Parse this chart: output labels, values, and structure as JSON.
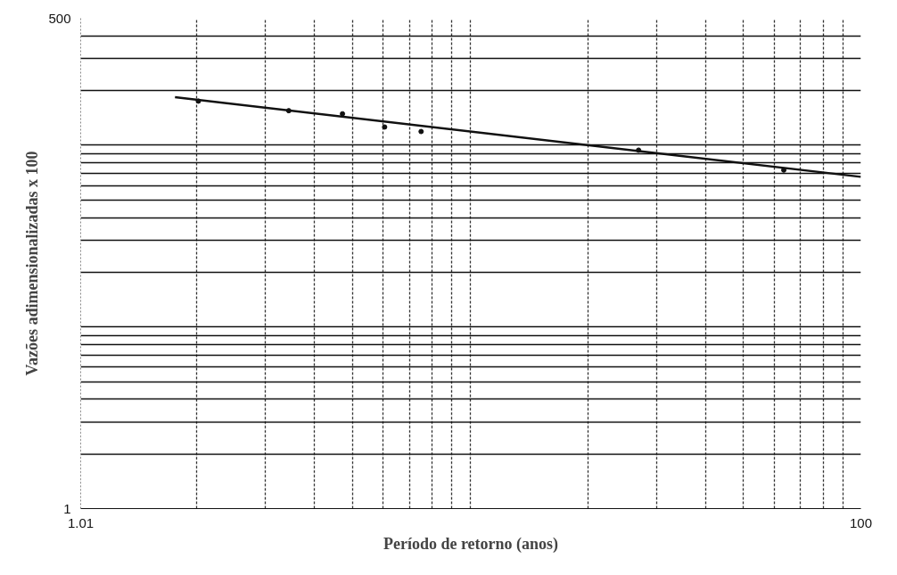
{
  "chart_data": {
    "type": "line",
    "xlabel": "Período de retorno (anos)",
    "ylabel": "Vazões adimensionalizadas x 100",
    "log": "xy",
    "grid": true,
    "xlim": [
      1.01,
      100
    ],
    "ylim": [
      1,
      500
    ],
    "xticks": [
      {
        "value": 1.01,
        "label": "1.01"
      },
      {
        "value": 2,
        "label": null
      },
      {
        "value": 3,
        "label": null
      },
      {
        "value": 4,
        "label": null
      },
      {
        "value": 5,
        "label": null
      },
      {
        "value": 6,
        "label": null
      },
      {
        "value": 7,
        "label": null
      },
      {
        "value": 8,
        "label": null
      },
      {
        "value": 9,
        "label": null
      },
      {
        "value": 10,
        "label": null
      },
      {
        "value": 20,
        "label": null
      },
      {
        "value": 30,
        "label": null
      },
      {
        "value": 40,
        "label": null
      },
      {
        "value": 50,
        "label": null
      },
      {
        "value": 60,
        "label": null
      },
      {
        "value": 70,
        "label": null
      },
      {
        "value": 80,
        "label": null
      },
      {
        "value": 90,
        "label": null
      },
      {
        "value": 100,
        "label": "100"
      }
    ],
    "yticks": [
      1,
      {
        "value": 2,
        "label": null
      },
      {
        "value": 3,
        "label": null
      },
      {
        "value": 4,
        "label": null
      },
      {
        "value": 5,
        "label": null
      },
      {
        "value": 6,
        "label": null
      },
      {
        "value": 7,
        "label": null
      },
      {
        "value": 8,
        "label": null
      },
      {
        "value": 9,
        "label": null
      },
      {
        "value": 10,
        "label": null
      },
      {
        "value": 20,
        "label": null
      },
      {
        "value": 30,
        "label": null
      },
      {
        "value": 40,
        "label": null
      },
      {
        "value": 50,
        "label": null
      },
      {
        "value": 60,
        "label": null
      },
      {
        "value": 70,
        "label": null
      },
      {
        "value": 80,
        "label": null
      },
      {
        "value": 90,
        "label": null
      },
      {
        "value": 100,
        "label": null
      },
      {
        "value": 200,
        "label": null
      },
      {
        "value": 300,
        "label": null
      },
      {
        "value": 400,
        "label": null
      },
      500
    ],
    "series": [
      {
        "color": "#111111",
        "marker": "none",
        "line_style": "solid",
        "x": [
          1.76,
          100
        ],
        "values": [
          184,
          67
        ]
      },
      {
        "type": "scatter",
        "color": "#111111",
        "marker": "circle",
        "x": [
          2.02,
          3.44,
          4.72,
          6.05,
          7.5,
          27,
          63.5
        ],
        "values": [
          175,
          155,
          149,
          126,
          119,
          94,
          73
        ]
      }
    ]
  }
}
